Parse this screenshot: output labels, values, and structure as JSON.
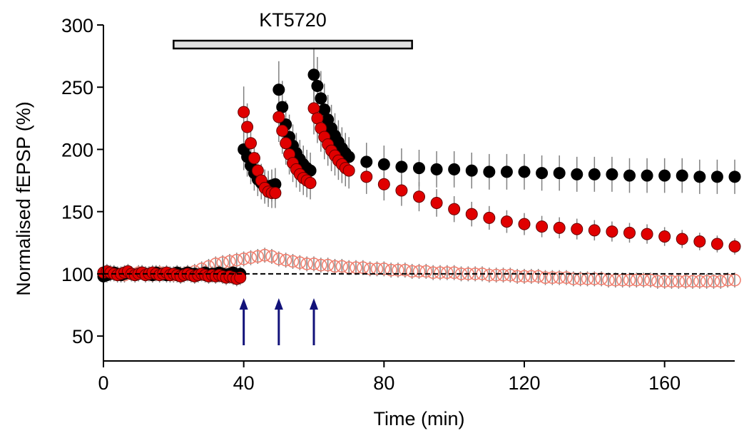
{
  "chart_data": {
    "type": "scatter",
    "xlabel": "Time (min)",
    "ylabel": "Normalised fEPSP (%)",
    "xlim": [
      0,
      180
    ],
    "ylim": [
      30,
      300
    ],
    "xticks": [
      0,
      40,
      80,
      120,
      160
    ],
    "yticks": [
      50,
      100,
      150,
      200,
      250,
      300
    ],
    "grid": false,
    "baseline_y": 100,
    "drug_bar": {
      "label": "KT5720",
      "start": 20,
      "end": 88
    },
    "stimulus_times": [
      40,
      50,
      60
    ],
    "colors": {
      "black_series": "#000000",
      "red_series": "#e00000",
      "open_series": "#f08070",
      "error_bars": "#808080",
      "arrows": "#12127a"
    },
    "series": [
      {
        "marker": "filled-black",
        "x": [
          0,
          1,
          2,
          3,
          4,
          5,
          6,
          7,
          8,
          9,
          10,
          11,
          12,
          13,
          14,
          15,
          16,
          17,
          18,
          19,
          20,
          21,
          22,
          23,
          24,
          25,
          26,
          27,
          28,
          29,
          30,
          31,
          32,
          33,
          34,
          35,
          36,
          37,
          38,
          39,
          40,
          41,
          42,
          43,
          44,
          45,
          46,
          47,
          48,
          49,
          50,
          51,
          52,
          53,
          54,
          55,
          56,
          57,
          58,
          59,
          60,
          61,
          62,
          63,
          64,
          65,
          66,
          67,
          68,
          69,
          70,
          75,
          80,
          85,
          90,
          95,
          100,
          105,
          110,
          115,
          120,
          125,
          130,
          135,
          140,
          145,
          150,
          155,
          160,
          165,
          170,
          175,
          180
        ],
        "y": [
          98,
          99,
          100,
          101,
          100,
          99,
          100,
          101,
          100,
          99,
          100,
          101,
          100,
          100,
          99,
          101,
          100,
          100,
          99,
          100,
          100,
          101,
          99,
          100,
          101,
          100,
          100,
          99,
          100,
          101,
          99,
          100,
          100,
          101,
          100,
          99,
          100,
          101,
          99,
          100,
          200,
          194,
          187,
          181,
          176,
          173,
          171,
          170,
          171,
          172,
          248,
          234,
          220,
          210,
          203,
          197,
          192,
          188,
          185,
          183,
          260,
          251,
          241,
          232,
          224,
          217,
          211,
          206,
          201,
          197,
          194,
          190,
          188,
          186,
          185,
          184,
          184,
          183,
          182,
          182,
          182,
          181,
          181,
          180,
          180,
          180,
          179,
          179,
          179,
          179,
          178,
          178,
          178
        ]
      },
      {
        "marker": "filled-red",
        "x": [
          0,
          1,
          2,
          3,
          4,
          5,
          6,
          7,
          8,
          9,
          10,
          11,
          12,
          13,
          14,
          15,
          16,
          17,
          18,
          19,
          20,
          21,
          22,
          23,
          24,
          25,
          26,
          27,
          28,
          29,
          30,
          31,
          32,
          33,
          34,
          35,
          36,
          37,
          38,
          39,
          40,
          41,
          42,
          43,
          44,
          45,
          46,
          47,
          48,
          49,
          50,
          51,
          52,
          53,
          54,
          55,
          56,
          57,
          58,
          59,
          60,
          61,
          62,
          63,
          64,
          65,
          66,
          67,
          68,
          69,
          70,
          75,
          80,
          85,
          90,
          95,
          100,
          105,
          110,
          115,
          120,
          125,
          130,
          135,
          140,
          145,
          150,
          155,
          160,
          165,
          170,
          175,
          180
        ],
        "y": [
          101,
          102,
          101,
          100,
          99,
          100,
          101,
          102,
          100,
          99,
          100,
          101,
          99,
          100,
          101,
          100,
          99,
          100,
          101,
          99,
          100,
          99,
          98,
          99,
          100,
          99,
          98,
          99,
          100,
          99,
          98,
          99,
          98,
          99,
          98,
          97,
          98,
          97,
          96,
          97,
          230,
          218,
          205,
          193,
          183,
          175,
          169,
          166,
          165,
          165,
          226,
          215,
          205,
          196,
          189,
          184,
          180,
          177,
          175,
          173,
          233,
          225,
          217,
          210,
          204,
          199,
          195,
          191,
          188,
          185,
          183,
          178,
          172,
          167,
          162,
          157,
          152,
          148,
          145,
          142,
          140,
          138,
          137,
          136,
          135,
          134,
          133,
          132,
          130,
          128,
          126,
          124,
          122
        ]
      },
      {
        "marker": "open-red",
        "x": [
          0,
          2,
          4,
          6,
          8,
          10,
          12,
          14,
          16,
          18,
          20,
          22,
          24,
          26,
          28,
          30,
          32,
          34,
          36,
          38,
          40,
          42,
          44,
          46,
          48,
          50,
          52,
          54,
          56,
          58,
          60,
          62,
          64,
          66,
          68,
          70,
          72,
          74,
          76,
          78,
          80,
          82,
          84,
          86,
          88,
          90,
          92,
          94,
          96,
          98,
          100,
          102,
          104,
          106,
          108,
          110,
          112,
          114,
          116,
          118,
          120,
          122,
          124,
          126,
          128,
          130,
          132,
          134,
          136,
          138,
          140,
          142,
          144,
          146,
          148,
          150,
          152,
          154,
          156,
          158,
          160,
          162,
          164,
          166,
          168,
          170,
          172,
          174,
          176,
          178,
          180
        ],
        "y": [
          100,
          101,
          100,
          99,
          100,
          101,
          100,
          99,
          101,
          100,
          99,
          100,
          101,
          102,
          104,
          106,
          108,
          109,
          110,
          111,
          112,
          113,
          114,
          115,
          114,
          112,
          111,
          110,
          109,
          108,
          108,
          107,
          107,
          106,
          106,
          105,
          105,
          105,
          104,
          104,
          104,
          103,
          103,
          103,
          102,
          102,
          102,
          101,
          101,
          101,
          101,
          100,
          100,
          100,
          100,
          99,
          99,
          99,
          99,
          98,
          98,
          98,
          98,
          97,
          97,
          97,
          97,
          96,
          96,
          96,
          96,
          96,
          95,
          95,
          95,
          95,
          95,
          95,
          95,
          94,
          94,
          94,
          94,
          94,
          94,
          94,
          94,
          94,
          94,
          95,
          95
        ]
      }
    ]
  }
}
